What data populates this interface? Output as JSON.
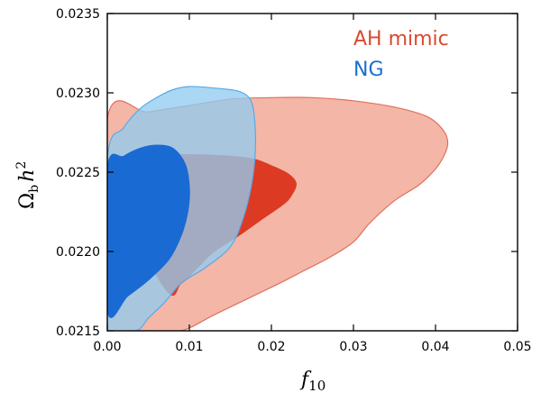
{
  "chart_data": {
    "type": "contour",
    "title": "",
    "xlabel": "f",
    "xlabel_subscript": "10",
    "ylabel_main": "Ω",
    "ylabel_sub": "b",
    "ylabel_h": "h",
    "ylabel_sup": "2",
    "xlim": [
      0.0,
      0.05
    ],
    "ylim": [
      0.0215,
      0.0235
    ],
    "xticks": [
      0.0,
      0.01,
      0.02,
      0.03,
      0.04,
      0.05
    ],
    "xtick_labels": [
      "0.00",
      "0.01",
      "0.02",
      "0.03",
      "0.04",
      "0.05"
    ],
    "yticks": [
      0.0215,
      0.022,
      0.0225,
      0.023,
      0.0235
    ],
    "ytick_labels": [
      "0.0215",
      "0.0220",
      "0.0225",
      "0.0230",
      "0.0235"
    ],
    "legend_position": "top-right",
    "series": [
      {
        "name": "AH mimic",
        "color": "#d9492f",
        "contours": [
          {
            "level": "95%",
            "fill": "#f4b6a6",
            "stroke": "#e07060",
            "points": [
              [
                0.0,
                0.02284
              ],
              [
                0.005,
                0.02288
              ],
              [
                0.01,
                0.02292
              ],
              [
                0.015,
                0.02296
              ],
              [
                0.02,
                0.02297
              ],
              [
                0.025,
                0.02297
              ],
              [
                0.03,
                0.02295
              ],
              [
                0.035,
                0.02291
              ],
              [
                0.039,
                0.02285
              ],
              [
                0.041,
                0.02276
              ],
              [
                0.0415,
                0.02268
              ],
              [
                0.041,
                0.0226
              ],
              [
                0.04,
                0.02252
              ],
              [
                0.038,
                0.02242
              ],
              [
                0.035,
                0.02232
              ],
              [
                0.032,
                0.02218
              ],
              [
                0.03,
                0.02206
              ],
              [
                0.027,
                0.02196
              ],
              [
                0.024,
                0.02188
              ],
              [
                0.021,
                0.0218
              ],
              [
                0.017,
                0.0217
              ],
              [
                0.013,
                0.0216
              ],
              [
                0.009,
                0.0215
              ],
              [
                0.005,
                0.0215
              ],
              [
                0.003,
                0.0215
              ],
              [
                0.0,
                0.0215
              ]
            ]
          },
          {
            "level": "68%",
            "fill": "#dd3a24",
            "stroke": "#dd3a24",
            "points": [
              [
                0.0,
                0.02245
              ],
              [
                0.0,
                0.02258
              ],
              [
                0.004,
                0.0226
              ],
              [
                0.01,
                0.02261
              ],
              [
                0.015,
                0.0226
              ],
              [
                0.018,
                0.02258
              ],
              [
                0.02,
                0.02254
              ],
              [
                0.022,
                0.02249
              ],
              [
                0.023,
                0.02243
              ],
              [
                0.0225,
                0.02236
              ],
              [
                0.0215,
                0.0223
              ],
              [
                0.019,
                0.02221
              ],
              [
                0.016,
                0.0221
              ],
              [
                0.013,
                0.022
              ],
              [
                0.011,
                0.0219
              ],
              [
                0.009,
                0.0218
              ],
              [
                0.007,
                0.02177
              ]
            ]
          }
        ]
      },
      {
        "name": "NG",
        "color": "#1a6fd1",
        "contours": [
          {
            "level": "95%",
            "fill": "#92ccf0",
            "stroke": "#5aa9e6",
            "points": [
              [
                0.0,
                0.02258
              ],
              [
                0.002,
                0.02278
              ],
              [
                0.004,
                0.0229
              ],
              [
                0.006,
                0.02297
              ],
              [
                0.008,
                0.02302
              ],
              [
                0.01,
                0.02304
              ],
              [
                0.013,
                0.02303
              ],
              [
                0.016,
                0.02301
              ],
              [
                0.0175,
                0.02295
              ],
              [
                0.018,
                0.0228
              ],
              [
                0.018,
                0.0226
              ],
              [
                0.0175,
                0.0224
              ],
              [
                0.0165,
                0.0222
              ],
              [
                0.015,
                0.02203
              ],
              [
                0.012,
                0.0219
              ],
              [
                0.009,
                0.0218
              ],
              [
                0.007,
                0.02168
              ],
              [
                0.005,
                0.02158
              ],
              [
                0.0035,
                0.0215
              ],
              [
                0.0,
                0.0215
              ]
            ]
          },
          {
            "level": "68%",
            "fill": "#1a6ad3",
            "stroke": "#1a6ad3",
            "points": [
              [
                0.0,
                0.02252
              ],
              [
                0.002,
                0.0226
              ],
              [
                0.004,
                0.02265
              ],
              [
                0.006,
                0.02267
              ],
              [
                0.008,
                0.02265
              ],
              [
                0.0095,
                0.02255
              ],
              [
                0.01,
                0.0224
              ],
              [
                0.0098,
                0.02225
              ],
              [
                0.009,
                0.0221
              ],
              [
                0.0075,
                0.02195
              ],
              [
                0.005,
                0.02182
              ],
              [
                0.0025,
                0.02172
              ],
              [
                0.0,
                0.02163
              ]
            ]
          }
        ]
      }
    ]
  }
}
